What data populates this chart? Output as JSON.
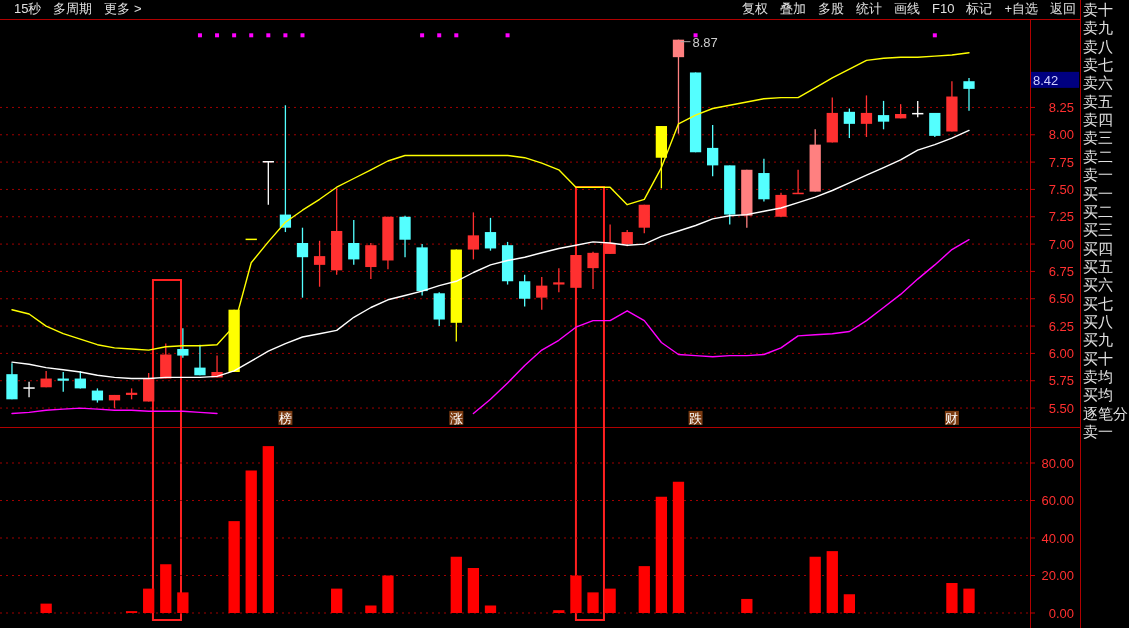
{
  "chart_data": [
    {
      "type": "other",
      "annotations": [
        "15秒",
        "多周期",
        "更多 >",
        "复权",
        "叠加",
        "多股",
        "统计",
        "画线",
        "F10",
        "标记",
        "+自选",
        "返回"
      ]
    },
    {
      "type": "candlestick",
      "categories": [
        null,
        null,
        null,
        null,
        null,
        null,
        null,
        null,
        null,
        null,
        null,
        null,
        null,
        null,
        null,
        null,
        null,
        null,
        null,
        null,
        null,
        null,
        null,
        null,
        null,
        null,
        null,
        null,
        null,
        null,
        null,
        null,
        null,
        null,
        null,
        null,
        null,
        null,
        null,
        null,
        null,
        null,
        null,
        null,
        null,
        null,
        null,
        null,
        null,
        null,
        null,
        null,
        null,
        null,
        null,
        null,
        null
      ],
      "ohlc": [
        [
          5.81,
          5.91,
          5.58,
          5.58
        ],
        [
          5.69,
          5.74,
          5.6,
          5.69
        ],
        [
          5.69,
          5.84,
          5.69,
          5.77
        ],
        [
          5.77,
          5.83,
          5.65,
          5.75
        ],
        [
          5.77,
          5.84,
          5.68,
          5.68
        ],
        [
          5.66,
          5.68,
          5.55,
          5.57
        ],
        [
          5.57,
          5.62,
          5.5,
          5.62
        ],
        [
          5.62,
          5.68,
          5.58,
          5.64
        ],
        [
          5.56,
          5.82,
          5.56,
          5.77
        ],
        [
          5.77,
          6.09,
          5.77,
          5.99
        ],
        [
          6.04,
          6.23,
          5.96,
          5.98
        ],
        [
          5.87,
          6.08,
          5.8,
          5.8
        ],
        [
          5.78,
          5.98,
          5.78,
          5.83
        ],
        [
          5.83,
          6.4,
          5.83,
          6.4
        ],
        [
          7.05,
          7.05,
          7.05,
          7.05
        ],
        [
          7.76,
          7.76,
          7.36,
          7.76
        ],
        [
          7.27,
          8.27,
          7.11,
          7.15
        ],
        [
          7.01,
          7.15,
          6.51,
          6.88
        ],
        [
          6.81,
          7.03,
          6.61,
          6.89
        ],
        [
          6.76,
          7.51,
          6.72,
          7.12
        ],
        [
          7.01,
          7.22,
          6.81,
          6.86
        ],
        [
          6.79,
          7.01,
          6.68,
          6.99
        ],
        [
          6.85,
          7.25,
          6.77,
          7.25
        ],
        [
          7.25,
          7.26,
          6.88,
          7.04
        ],
        [
          6.97,
          7.0,
          6.53,
          6.57
        ],
        [
          6.55,
          6.56,
          6.25,
          6.31
        ],
        [
          6.28,
          6.95,
          6.11,
          6.95
        ],
        [
          6.95,
          7.29,
          6.86,
          7.08
        ],
        [
          7.11,
          7.24,
          6.94,
          6.96
        ],
        [
          6.99,
          7.02,
          6.63,
          6.66
        ],
        [
          6.66,
          6.72,
          6.43,
          6.5
        ],
        [
          6.51,
          6.7,
          6.4,
          6.62
        ],
        [
          6.63,
          6.78,
          6.56,
          6.65
        ],
        [
          6.6,
          6.9,
          6.6,
          6.9
        ],
        [
          6.78,
          6.93,
          6.59,
          6.92
        ],
        [
          6.91,
          7.18,
          6.91,
          7.01
        ],
        [
          7.0,
          7.13,
          6.98,
          7.11
        ],
        [
          7.15,
          7.36,
          7.1,
          7.36
        ],
        [
          7.79,
          8.08,
          7.51,
          8.08
        ],
        [
          8.71,
          8.87,
          8.01,
          8.87
        ],
        [
          8.57,
          8.57,
          7.84,
          7.84
        ],
        [
          7.88,
          8.09,
          7.62,
          7.72
        ],
        [
          7.72,
          7.72,
          7.18,
          7.27
        ],
        [
          7.26,
          7.68,
          7.15,
          7.68
        ],
        [
          7.65,
          7.78,
          7.39,
          7.41
        ],
        [
          7.25,
          7.47,
          7.25,
          7.45
        ],
        [
          7.46,
          7.68,
          7.46,
          7.47
        ],
        [
          7.48,
          8.05,
          7.48,
          7.91
        ],
        [
          7.93,
          8.34,
          7.93,
          8.2
        ],
        [
          8.21,
          8.24,
          7.97,
          8.1
        ],
        [
          8.1,
          8.36,
          7.98,
          8.2
        ],
        [
          8.18,
          8.31,
          8.05,
          8.12
        ],
        [
          8.15,
          8.28,
          8.15,
          8.19
        ],
        [
          8.2,
          8.31,
          8.16,
          8.2
        ],
        [
          8.2,
          8.2,
          7.98,
          7.99
        ],
        [
          8.03,
          8.49,
          8.03,
          8.35
        ],
        [
          8.49,
          8.52,
          8.22,
          8.42
        ]
      ],
      "colors": [
        "#54ffff",
        "#ffffff",
        "#ff3030",
        "#54ffff",
        "#54ffff",
        "#54ffff",
        "#ff3030",
        "#ff3030",
        "#ff3030",
        "#ff3030",
        "#54ffff",
        "#54ffff",
        "#ff3030",
        "#ffff00",
        "#ffff00",
        "#ffffff",
        "#54ffff",
        "#54ffff",
        "#ff3030",
        "#ff3030",
        "#54ffff",
        "#ff3030",
        "#ff3030",
        "#54ffff",
        "#54ffff",
        "#54ffff",
        "#ffff00",
        "#ff3030",
        "#54ffff",
        "#54ffff",
        "#54ffff",
        "#ff3030",
        "#ff3030",
        "#ff3030",
        "#ff3030",
        "#ff3030",
        "#ff3030",
        "#ff3030",
        "#ffff00",
        "#ff8080",
        "#54ffff",
        "#54ffff",
        "#54ffff",
        "#ff8080",
        "#54ffff",
        "#ff3030",
        "#ff3030",
        "#ff8080",
        "#ff3030",
        "#54ffff",
        "#ff3030",
        "#54ffff",
        "#ff3030",
        "#ffffff",
        "#54ffff",
        "#ff3030",
        "#54ffff"
      ],
      "series": [
        {
          "type": "line",
          "color": "#ffff00",
          "values": [
            6.4,
            6.36,
            6.25,
            6.18,
            6.13,
            6.08,
            6.05,
            6.04,
            6.03,
            6.06,
            6.07,
            6.07,
            6.08,
            6.25,
            6.83,
            7.02,
            7.2,
            7.31,
            7.41,
            7.52,
            7.6,
            7.68,
            7.76,
            7.81,
            7.81,
            7.81,
            7.81,
            7.81,
            7.81,
            7.81,
            7.79,
            7.74,
            7.68,
            7.52,
            7.52,
            7.52,
            7.36,
            7.41,
            7.7,
            8.1,
            8.18,
            8.24,
            8.27,
            8.3,
            8.33,
            8.34,
            8.34,
            8.43,
            8.52,
            8.6,
            8.68,
            8.7,
            8.71,
            8.71,
            8.72,
            8.73,
            8.75
          ]
        },
        {
          "type": "line",
          "color": "#ffffff",
          "values": [
            5.92,
            5.9,
            5.87,
            5.85,
            5.83,
            5.8,
            5.78,
            5.77,
            5.77,
            5.78,
            5.78,
            5.78,
            5.79,
            5.84,
            5.93,
            6.02,
            6.09,
            6.15,
            6.18,
            6.21,
            6.33,
            6.42,
            6.49,
            6.53,
            6.57,
            6.62,
            6.66,
            6.74,
            6.81,
            6.85,
            6.88,
            6.92,
            6.96,
            6.99,
            7.02,
            7.01,
            6.99,
            7.0,
            7.07,
            7.12,
            7.17,
            7.23,
            7.26,
            7.27,
            7.3,
            7.33,
            7.38,
            7.43,
            7.49,
            7.56,
            7.63,
            7.7,
            7.77,
            7.86,
            7.91,
            7.97,
            8.04
          ]
        },
        {
          "type": "line",
          "color": "#ff00ff",
          "values": [
            5.45,
            5.46,
            5.48,
            5.49,
            5.5,
            5.49,
            5.48,
            5.48,
            5.47,
            5.47,
            5.47,
            5.46,
            5.45,
            null,
            null,
            null,
            null,
            null,
            null,
            null,
            null,
            null,
            null,
            null,
            null,
            null,
            null,
            5.45,
            5.58,
            5.73,
            5.89,
            6.03,
            6.12,
            6.24,
            6.3,
            6.3,
            6.39,
            6.3,
            6.1,
            5.99,
            5.98,
            5.97,
            5.98,
            5.98,
            5.99,
            6.05,
            6.16,
            6.17,
            6.18,
            6.2,
            6.3,
            6.42,
            6.54,
            6.68,
            6.81,
            6.95,
            7.04
          ]
        },
        {
          "type": "scatter",
          "color": "#ff00ff",
          "marker": "square",
          "values": [
            null,
            null,
            null,
            null,
            null,
            null,
            null,
            null,
            null,
            null,
            null,
            8.91,
            8.91,
            8.91,
            8.91,
            8.91,
            8.91,
            8.91,
            null,
            null,
            null,
            null,
            null,
            null,
            8.91,
            8.91,
            8.91,
            null,
            null,
            8.91,
            null,
            null,
            null,
            null,
            null,
            null,
            null,
            null,
            null,
            null,
            8.91,
            null,
            null,
            null,
            null,
            null,
            null,
            null,
            null,
            null,
            null,
            null,
            null,
            null,
            8.91,
            null,
            null
          ]
        },
        {
          "type": "scatter",
          "color": "#7a3a10",
          "marker": "square",
          "values": [
            null,
            null,
            null,
            null,
            null,
            null,
            null,
            null,
            null,
            null,
            null,
            null,
            null,
            null,
            null,
            null,
            5.41,
            null,
            null,
            null,
            null,
            null,
            null,
            null,
            null,
            null,
            5.41,
            null,
            null,
            null,
            null,
            null,
            null,
            null,
            null,
            null,
            null,
            null,
            null,
            null,
            5.41,
            null,
            null,
            null,
            null,
            null,
            null,
            null,
            null,
            null,
            null,
            null,
            null,
            null,
            null,
            5.41,
            null
          ],
          "value_labels": [
            null,
            null,
            null,
            null,
            null,
            null,
            null,
            null,
            null,
            null,
            null,
            null,
            null,
            null,
            null,
            null,
            "榜",
            null,
            null,
            null,
            null,
            null,
            null,
            null,
            null,
            null,
            "涨",
            null,
            null,
            null,
            null,
            null,
            null,
            null,
            null,
            null,
            null,
            null,
            null,
            null,
            "跌",
            null,
            null,
            null,
            null,
            null,
            null,
            null,
            null,
            null,
            null,
            null,
            null,
            null,
            null,
            "财",
            null
          ]
        }
      ],
      "ylim": [
        5.345,
        9.05
      ],
      "yticks": [
        {
          "value": 5.5,
          "label": "5.50"
        },
        {
          "value": 5.75,
          "label": "5.75"
        },
        {
          "value": 6.0,
          "label": "6.00"
        },
        {
          "value": 6.25,
          "label": "6.25"
        },
        {
          "value": 6.5,
          "label": "6.50"
        },
        {
          "value": 6.75,
          "label": "6.75"
        },
        {
          "value": 7.0,
          "label": "7.00"
        },
        {
          "value": 7.25,
          "label": "7.25"
        },
        {
          "value": 7.5,
          "label": "7.50"
        },
        {
          "value": 7.75,
          "label": "7.75"
        },
        {
          "value": 8.0,
          "label": "8.00"
        },
        {
          "value": 8.25,
          "label": "8.25"
        }
      ],
      "tick_labels": "y",
      "grid": "y",
      "annotations": [
        "8.87",
        "8.42"
      ]
    },
    {
      "type": "bar",
      "categories": [
        null,
        null,
        null,
        null,
        null,
        null,
        null,
        null,
        null,
        null,
        null,
        null,
        null,
        null,
        null,
        null,
        null,
        null,
        null,
        null,
        null,
        null,
        null,
        null,
        null,
        null,
        null,
        null,
        null,
        null,
        null,
        null,
        null,
        null,
        null,
        null,
        null,
        null,
        null,
        null,
        null,
        null,
        null,
        null,
        null,
        null,
        null,
        null,
        null,
        null,
        null,
        null,
        null,
        null,
        null,
        null,
        null
      ],
      "values": [
        0,
        0,
        5,
        0,
        0,
        0,
        0,
        1,
        13,
        26,
        11,
        0,
        0,
        49,
        76,
        89,
        0,
        0,
        0,
        13,
        0,
        4,
        20,
        0,
        0,
        0,
        30,
        24,
        4,
        0,
        0,
        0,
        1.5,
        20,
        11,
        13,
        0,
        25,
        62,
        70,
        0,
        0,
        0,
        7.5,
        0,
        0,
        0,
        30,
        33,
        10,
        0,
        0,
        0,
        0,
        0,
        16,
        13
      ],
      "color": "#ff0000",
      "ylim": [
        -8,
        97.6
      ],
      "yticks": [
        {
          "value": 0,
          "label": "0.00"
        },
        {
          "value": 20,
          "label": "20.00"
        },
        {
          "value": 40,
          "label": "40.00"
        },
        {
          "value": 60,
          "label": "60.00"
        },
        {
          "value": 80,
          "label": "80.00"
        }
      ],
      "tick_labels": "y",
      "grid": "y"
    },
    {
      "type": "other",
      "annotations": [
        "卖十",
        "卖九",
        "卖八",
        "卖七",
        "卖六",
        "卖五",
        "卖四",
        "卖三",
        "卖二",
        "卖一",
        "买一",
        "买二",
        "买三",
        "买四",
        "买五",
        "买六",
        "买七",
        "买八",
        "买九",
        "买十",
        "卖均",
        "买均",
        "逐笔分",
        "卖一"
      ]
    }
  ]
}
